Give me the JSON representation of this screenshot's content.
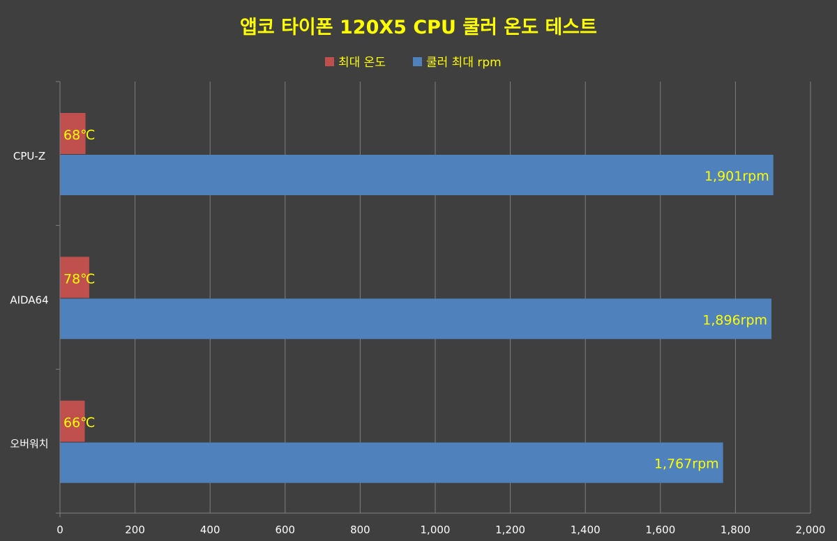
{
  "chart_data": {
    "type": "bar",
    "orientation": "horizontal",
    "title": "앱코 타이폰 120X5 CPU 쿨러 온도 테스트",
    "categories": [
      "CPU-Z",
      "AIDA64",
      "오버워치"
    ],
    "series": [
      {
        "name": "최대 온도",
        "values": [
          68,
          78,
          66
        ],
        "labels": [
          "68℃",
          "78℃",
          "66℃"
        ],
        "color": "#c0504d"
      },
      {
        "name": "쿨러 최대 rpm",
        "values": [
          1901,
          1896,
          1767
        ],
        "labels": [
          "1,901rpm",
          "1,896rpm",
          "1,767rpm"
        ],
        "color": "#4f81bd"
      }
    ],
    "xlim": [
      0,
      2000
    ],
    "xticks": [
      "0",
      "200",
      "400",
      "600",
      "800",
      "1,000",
      "1,200",
      "1,400",
      "1,600",
      "1,800",
      "2,000"
    ],
    "legend_position": "top",
    "grid": "vertical",
    "colors": {
      "background": "#3f3f3f",
      "title": "#ffff00",
      "data_label": "#ffff00",
      "legend_text": "#ffff00",
      "axis_text": "#ffffff",
      "grid": "#7f7f7f"
    }
  }
}
